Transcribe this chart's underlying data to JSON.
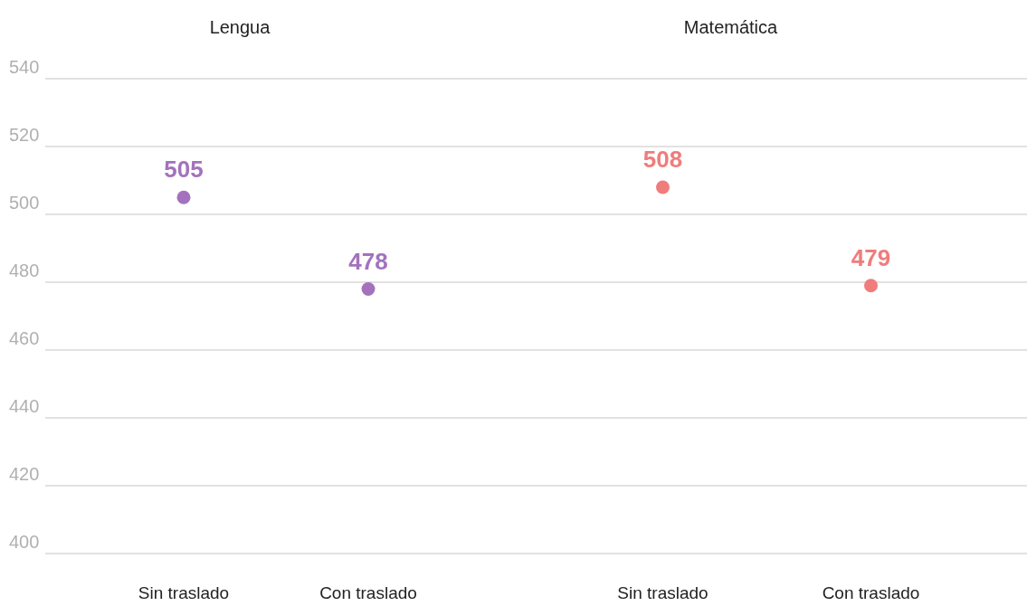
{
  "chart_data": [
    {
      "type": "scatter",
      "title": "Lengua",
      "categories": [
        "Sin traslado",
        "Con traslado"
      ],
      "values": [
        505,
        478
      ],
      "color": "#a472bd",
      "ylim": [
        400,
        540
      ],
      "yticks": [
        400,
        420,
        440,
        460,
        480,
        500,
        520,
        540
      ],
      "grid": "y",
      "marker": "circle",
      "data_labels": true
    },
    {
      "type": "scatter",
      "title": "Matemática",
      "categories": [
        "Sin traslado",
        "Con traslado"
      ],
      "values": [
        508,
        479
      ],
      "color": "#f07c7c",
      "ylim": [
        400,
        540
      ],
      "yticks": [
        400,
        420,
        440,
        460,
        480,
        500,
        520,
        540
      ],
      "grid": "y",
      "marker": "circle",
      "data_labels": true,
      "tick_labels": "x"
    }
  ]
}
